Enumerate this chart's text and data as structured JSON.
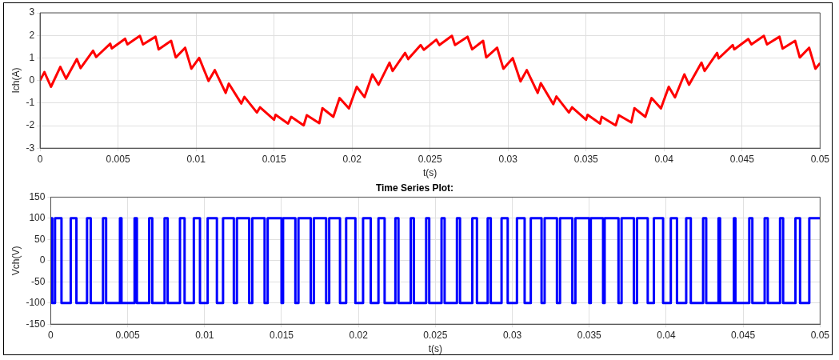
{
  "chart_data": [
    {
      "type": "line",
      "xlabel": "t(s)",
      "ylabel": "Ich(A)",
      "xlim": [
        0,
        0.05
      ],
      "xticks": [
        0,
        0.005,
        0.01,
        0.015,
        0.02,
        0.025,
        0.03,
        0.035,
        0.04,
        0.045,
        0.05
      ],
      "ylim": [
        -3,
        3
      ],
      "yticks": [
        -3,
        -2,
        -1,
        0,
        1,
        2,
        3
      ],
      "grid": true,
      "x": [
        0,
        0.00028,
        0.0007,
        0.0013,
        0.00167,
        0.00236,
        0.0026,
        0.0034,
        0.0036,
        0.0045,
        0.0046,
        0.00545,
        0.0056,
        0.0064,
        0.0066,
        0.0074,
        0.0076,
        0.0084,
        0.0087,
        0.0093,
        0.0097,
        0.0102,
        0.0108,
        0.0112,
        0.0119,
        0.0121,
        0.0129,
        0.0131,
        0.0139,
        0.0141,
        0.015,
        0.0151,
        0.0159,
        0.0161,
        0.0169,
        0.0171,
        0.0179,
        0.0181,
        0.0188,
        0.0192,
        0.0198,
        0.0203,
        0.0208,
        0.0213,
        0.0217,
        0.0224,
        0.0226,
        0.0234,
        0.0236,
        0.0244,
        0.0246,
        0.0254,
        0.0256,
        0.0264,
        0.0266,
        0.0274,
        0.0277,
        0.0284,
        0.0286,
        0.0293,
        0.0297,
        0.0303,
        0.0308,
        0.0312,
        0.0319,
        0.0321,
        0.0329,
        0.0331,
        0.0339,
        0.0341,
        0.035,
        0.0351,
        0.0359,
        0.036,
        0.0369,
        0.0371,
        0.0379,
        0.0381,
        0.0388,
        0.0392,
        0.0398,
        0.0403,
        0.0407,
        0.0413,
        0.0416,
        0.0424,
        0.0426,
        0.0434,
        0.0435,
        0.0444,
        0.0445,
        0.0454,
        0.0456,
        0.0464,
        0.0466,
        0.0474,
        0.0476,
        0.0484,
        0.0487,
        0.0493,
        0.0497,
        0.05
      ],
      "series": [
        {
          "color": "#ff0000",
          "values": [
            0,
            0.37,
            -0.28,
            0.6,
            0.08,
            0.95,
            0.55,
            1.32,
            1.04,
            1.63,
            1.42,
            1.85,
            1.6,
            1.98,
            1.6,
            1.94,
            1.38,
            1.76,
            1.02,
            1.45,
            0.52,
            1.0,
            -0.02,
            0.46,
            -0.55,
            -0.14,
            -1.02,
            -0.73,
            -1.42,
            -1.19,
            -1.74,
            -1.52,
            -1.91,
            -1.61,
            -1.99,
            -1.54,
            -1.89,
            -1.23,
            -1.61,
            -0.78,
            -1.24,
            -0.28,
            -0.74,
            0.27,
            -0.19,
            0.79,
            0.42,
            1.22,
            0.95,
            1.57,
            1.36,
            1.81,
            1.57,
            1.98,
            1.57,
            1.94,
            1.38,
            1.76,
            1.02,
            1.45,
            0.52,
            0.99,
            -0.04,
            0.46,
            -0.55,
            -0.12,
            -1.05,
            -0.71,
            -1.42,
            -1.19,
            -1.74,
            -1.52,
            -1.91,
            -1.61,
            -1.99,
            -1.54,
            -1.86,
            -1.23,
            -1.61,
            -0.78,
            -1.24,
            -0.28,
            -0.75,
            0.27,
            -0.19,
            0.79,
            0.42,
            1.22,
            0.98,
            1.57,
            1.38,
            1.84,
            1.6,
            1.98,
            1.6,
            1.94,
            1.41,
            1.76,
            1.02,
            1.45,
            0.52,
            0.77
          ]
        }
      ]
    },
    {
      "type": "step",
      "title": "Time Series Plot:",
      "xlabel": "t(s)",
      "ylabel": "Vch(V)",
      "xlim": [
        0,
        0.05
      ],
      "xticks": [
        0,
        0.005,
        0.01,
        0.015,
        0.02,
        0.025,
        0.03,
        0.035,
        0.04,
        0.045,
        0.05
      ],
      "ylim": [
        -150,
        150
      ],
      "yticks": [
        -150,
        -100,
        -50,
        0,
        50,
        100,
        150
      ],
      "grid": true,
      "x": [
        0,
        0.0001,
        0.00028,
        0.0007,
        0.0013,
        0.00167,
        0.00236,
        0.0026,
        0.0034,
        0.0036,
        0.0045,
        0.0046,
        0.00545,
        0.0056,
        0.0064,
        0.0066,
        0.0074,
        0.0076,
        0.0084,
        0.0087,
        0.0093,
        0.0097,
        0.0102,
        0.0108,
        0.0112,
        0.0119,
        0.0121,
        0.0129,
        0.0131,
        0.0139,
        0.0141,
        0.015,
        0.0151,
        0.0159,
        0.0161,
        0.0169,
        0.0171,
        0.0179,
        0.0181,
        0.0188,
        0.0192,
        0.0198,
        0.0203,
        0.0208,
        0.0213,
        0.0217,
        0.0224,
        0.0226,
        0.0234,
        0.0236,
        0.0244,
        0.0246,
        0.0254,
        0.0256,
        0.0264,
        0.0266,
        0.0274,
        0.0277,
        0.0284,
        0.0286,
        0.0293,
        0.0297,
        0.0303,
        0.0308,
        0.0312,
        0.0319,
        0.0321,
        0.0329,
        0.0331,
        0.0339,
        0.0341,
        0.035,
        0.0351,
        0.0359,
        0.036,
        0.0369,
        0.0371,
        0.0379,
        0.0381,
        0.0388,
        0.0392,
        0.0398,
        0.0403,
        0.0407,
        0.0413,
        0.0416,
        0.0424,
        0.0426,
        0.0434,
        0.0435,
        0.0444,
        0.0445,
        0.0454,
        0.0456,
        0.0464,
        0.0466,
        0.0474,
        0.0476,
        0.0484,
        0.0487,
        0.0493,
        0.0497,
        0.05
      ],
      "series": [
        {
          "color": "#0000ff",
          "values": [
            0,
            100,
            -100,
            100,
            -100,
            100,
            -100,
            100,
            -100,
            100,
            -100,
            100,
            -100,
            100,
            -100,
            100,
            -100,
            100,
            -100,
            100,
            -100,
            100,
            -100,
            100,
            -100,
            100,
            -100,
            100,
            -100,
            100,
            -100,
            100,
            -100,
            100,
            -100,
            100,
            -100,
            100,
            -100,
            100,
            -100,
            100,
            -100,
            100,
            -100,
            100,
            -100,
            100,
            -100,
            100,
            -100,
            100,
            -100,
            100,
            -100,
            100,
            -100,
            100,
            -100,
            100,
            -100,
            100,
            -100,
            100,
            -100,
            100,
            -100,
            100,
            -100,
            100,
            -100,
            100,
            -100,
            100,
            -100,
            100,
            -100,
            100,
            -100,
            100,
            -100,
            100,
            -100,
            100,
            -100,
            100,
            -100,
            100,
            -100,
            100,
            -100,
            100,
            -100,
            100,
            -100,
            100,
            -100,
            100,
            -100,
            100,
            -100,
            100,
            100
          ]
        }
      ]
    }
  ]
}
